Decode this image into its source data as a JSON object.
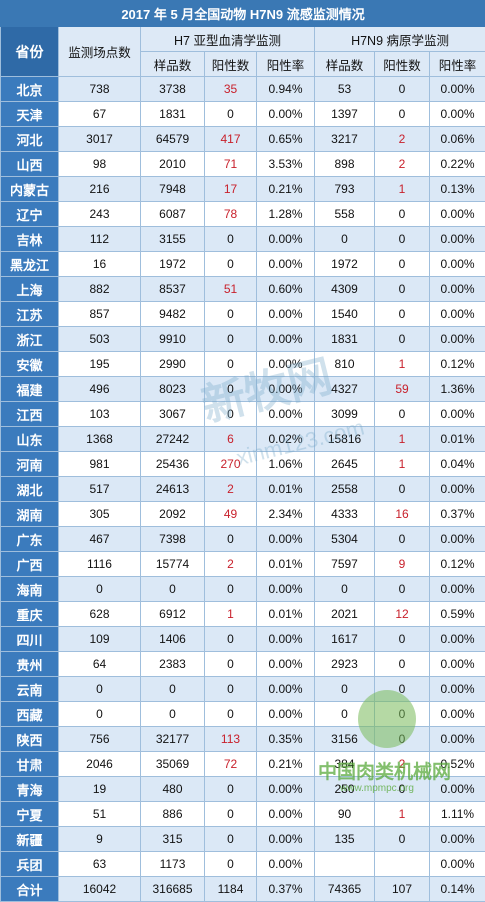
{
  "title": "2017 年 5 月全国动物 H7N9 流感监测情况",
  "headers": {
    "province": "省份",
    "sites": "监测场点数",
    "group_h7": "H7 亚型血清学监测",
    "group_h7n9": "H7N9 病原学监测",
    "samples": "样品数",
    "positives": "阳性数",
    "rate": "阳性率"
  },
  "rows": [
    {
      "p": "北京",
      "s": "738",
      "h7s": "3738",
      "h7p": "35",
      "h7r": "0.94%",
      "ps": "53",
      "pp": "0",
      "pr": "0.00%"
    },
    {
      "p": "天津",
      "s": "67",
      "h7s": "1831",
      "h7p": "0",
      "h7r": "0.00%",
      "ps": "1397",
      "pp": "0",
      "pr": "0.00%"
    },
    {
      "p": "河北",
      "s": "3017",
      "h7s": "64579",
      "h7p": "417",
      "h7r": "0.65%",
      "ps": "3217",
      "pp": "2",
      "pr": "0.06%"
    },
    {
      "p": "山西",
      "s": "98",
      "h7s": "2010",
      "h7p": "71",
      "h7r": "3.53%",
      "ps": "898",
      "pp": "2",
      "pr": "0.22%"
    },
    {
      "p": "内蒙古",
      "s": "216",
      "h7s": "7948",
      "h7p": "17",
      "h7r": "0.21%",
      "ps": "793",
      "pp": "1",
      "pr": "0.13%"
    },
    {
      "p": "辽宁",
      "s": "243",
      "h7s": "6087",
      "h7p": "78",
      "h7r": "1.28%",
      "ps": "558",
      "pp": "0",
      "pr": "0.00%"
    },
    {
      "p": "吉林",
      "s": "112",
      "h7s": "3155",
      "h7p": "0",
      "h7r": "0.00%",
      "ps": "0",
      "pp": "0",
      "pr": "0.00%"
    },
    {
      "p": "黑龙江",
      "s": "16",
      "h7s": "1972",
      "h7p": "0",
      "h7r": "0.00%",
      "ps": "1972",
      "pp": "0",
      "pr": "0.00%"
    },
    {
      "p": "上海",
      "s": "882",
      "h7s": "8537",
      "h7p": "51",
      "h7r": "0.60%",
      "ps": "4309",
      "pp": "0",
      "pr": "0.00%"
    },
    {
      "p": "江苏",
      "s": "857",
      "h7s": "9482",
      "h7p": "0",
      "h7r": "0.00%",
      "ps": "1540",
      "pp": "0",
      "pr": "0.00%"
    },
    {
      "p": "浙江",
      "s": "503",
      "h7s": "9910",
      "h7p": "0",
      "h7r": "0.00%",
      "ps": "1831",
      "pp": "0",
      "pr": "0.00%"
    },
    {
      "p": "安徽",
      "s": "195",
      "h7s": "2990",
      "h7p": "0",
      "h7r": "0.00%",
      "ps": "810",
      "pp": "1",
      "pr": "0.12%"
    },
    {
      "p": "福建",
      "s": "496",
      "h7s": "8023",
      "h7p": "0",
      "h7r": "0.00%",
      "ps": "4327",
      "pp": "59",
      "pr": "1.36%"
    },
    {
      "p": "江西",
      "s": "103",
      "h7s": "3067",
      "h7p": "0",
      "h7r": "0.00%",
      "ps": "3099",
      "pp": "0",
      "pr": "0.00%"
    },
    {
      "p": "山东",
      "s": "1368",
      "h7s": "27242",
      "h7p": "6",
      "h7r": "0.02%",
      "ps": "15816",
      "pp": "1",
      "pr": "0.01%"
    },
    {
      "p": "河南",
      "s": "981",
      "h7s": "25436",
      "h7p": "270",
      "h7r": "1.06%",
      "ps": "2645",
      "pp": "1",
      "pr": "0.04%"
    },
    {
      "p": "湖北",
      "s": "517",
      "h7s": "24613",
      "h7p": "2",
      "h7r": "0.01%",
      "ps": "2558",
      "pp": "0",
      "pr": "0.00%"
    },
    {
      "p": "湖南",
      "s": "305",
      "h7s": "2092",
      "h7p": "49",
      "h7r": "2.34%",
      "ps": "4333",
      "pp": "16",
      "pr": "0.37%"
    },
    {
      "p": "广东",
      "s": "467",
      "h7s": "7398",
      "h7p": "0",
      "h7r": "0.00%",
      "ps": "5304",
      "pp": "0",
      "pr": "0.00%"
    },
    {
      "p": "广西",
      "s": "1116",
      "h7s": "15774",
      "h7p": "2",
      "h7r": "0.01%",
      "ps": "7597",
      "pp": "9",
      "pr": "0.12%"
    },
    {
      "p": "海南",
      "s": "0",
      "h7s": "0",
      "h7p": "0",
      "h7r": "0.00%",
      "ps": "0",
      "pp": "0",
      "pr": "0.00%"
    },
    {
      "p": "重庆",
      "s": "628",
      "h7s": "6912",
      "h7p": "1",
      "h7r": "0.01%",
      "ps": "2021",
      "pp": "12",
      "pr": "0.59%"
    },
    {
      "p": "四川",
      "s": "109",
      "h7s": "1406",
      "h7p": "0",
      "h7r": "0.00%",
      "ps": "1617",
      "pp": "0",
      "pr": "0.00%"
    },
    {
      "p": "贵州",
      "s": "64",
      "h7s": "2383",
      "h7p": "0",
      "h7r": "0.00%",
      "ps": "2923",
      "pp": "0",
      "pr": "0.00%"
    },
    {
      "p": "云南",
      "s": "0",
      "h7s": "0",
      "h7p": "0",
      "h7r": "0.00%",
      "ps": "0",
      "pp": "0",
      "pr": "0.00%"
    },
    {
      "p": "西藏",
      "s": "0",
      "h7s": "0",
      "h7p": "0",
      "h7r": "0.00%",
      "ps": "0",
      "pp": "0",
      "pr": "0.00%"
    },
    {
      "p": "陕西",
      "s": "756",
      "h7s": "32177",
      "h7p": "113",
      "h7r": "0.35%",
      "ps": "3156",
      "pp": "0",
      "pr": "0.00%"
    },
    {
      "p": "甘肃",
      "s": "2046",
      "h7s": "35069",
      "h7p": "72",
      "h7r": "0.21%",
      "ps": "384",
      "pp": "2",
      "pr": "0.52%"
    },
    {
      "p": "青海",
      "s": "19",
      "h7s": "480",
      "h7p": "0",
      "h7r": "0.00%",
      "ps": "250",
      "pp": "0",
      "pr": "0.00%"
    },
    {
      "p": "宁夏",
      "s": "51",
      "h7s": "886",
      "h7p": "0",
      "h7r": "0.00%",
      "ps": "90",
      "pp": "1",
      "pr": "1.11%"
    },
    {
      "p": "新疆",
      "s": "9",
      "h7s": "315",
      "h7p": "0",
      "h7r": "0.00%",
      "ps": "135",
      "pp": "0",
      "pr": "0.00%"
    },
    {
      "p": "兵团",
      "s": "63",
      "h7s": "1173",
      "h7p": "0",
      "h7r": "0.00%",
      "ps": "",
      "pp": "",
      "pr": "0.00%"
    },
    {
      "p": "合计",
      "s": "16042",
      "h7s": "316685",
      "h7p": "1184",
      "h7r": "0.37%",
      "ps": "74365",
      "pp": "107",
      "pr": "0.14%"
    }
  ],
  "watermark": {
    "text": "新牧网",
    "sub": "xinm123.com",
    "site": "中国肉类机械网",
    "url": "www.mpmpc.org"
  }
}
